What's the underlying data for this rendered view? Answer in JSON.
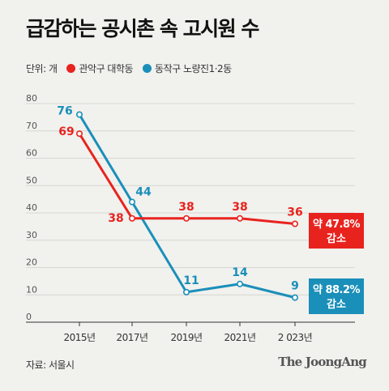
{
  "title": "급감하는 공시촌 속 고시원 수",
  "unit_label": "단위: 개",
  "source": "자료: 서울시",
  "brand": "The JoongAng",
  "chart_data": {
    "type": "line",
    "categories": [
      "2015년",
      "2017년",
      "2019년",
      "2021년",
      "2 023년"
    ],
    "ylim": [
      0,
      80
    ],
    "yticks": [
      0,
      10,
      20,
      30,
      40,
      50,
      60,
      70,
      80
    ],
    "grid": true,
    "legend": "top-left",
    "series": [
      {
        "name": "관악구 대학동",
        "color": "#e8231e",
        "values": [
          69,
          38,
          38,
          38,
          36
        ],
        "end_badge": [
          "약 47.8%",
          "감소"
        ]
      },
      {
        "name": "동작구 노량진1·2동",
        "color": "#1a8fb9",
        "values": [
          76,
          44,
          11,
          14,
          9
        ],
        "end_badge": [
          "약 88.2%",
          "감소"
        ]
      }
    ]
  }
}
